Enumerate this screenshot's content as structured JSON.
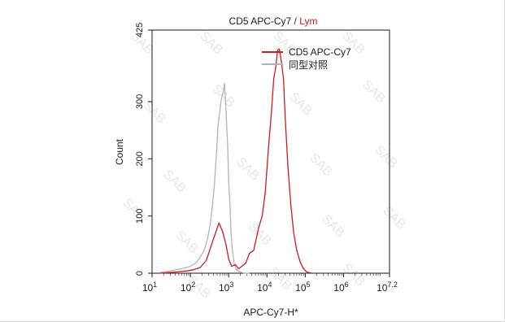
{
  "colors": {
    "sample": "#d0191b",
    "control": "#b3b3b3",
    "title_accent": "#d0191b",
    "text": "#1a1a1a",
    "watermark": "#e6e6e6"
  },
  "watermark_text": "SAB",
  "chart_data": {
    "type": "line",
    "title": {
      "main": "CD5 APC-Cy7",
      "separator": " / ",
      "accent": "Lym"
    },
    "xlabel": "APC-Cy7-H*",
    "ylabel": "Count",
    "x_scale": "log",
    "xlim": [
      10,
      15848932
    ],
    "ylim": [
      0,
      425
    ],
    "x_ticks": [
      {
        "value": 10,
        "base": "10",
        "exp": "1"
      },
      {
        "value": 100,
        "base": "10",
        "exp": "2"
      },
      {
        "value": 1000,
        "base": "10",
        "exp": "3"
      },
      {
        "value": 10000,
        "base": "10",
        "exp": "4"
      },
      {
        "value": 100000,
        "base": "10",
        "exp": "5"
      },
      {
        "value": 1000000,
        "base": "10",
        "exp": "6"
      },
      {
        "value": 15848932,
        "base": "10",
        "exp": "7.2"
      }
    ],
    "y_ticks": [
      {
        "value": 0,
        "label": "0"
      },
      {
        "value": 100,
        "label": "100"
      },
      {
        "value": 200,
        "label": "200"
      },
      {
        "value": 300,
        "label": "300"
      },
      {
        "value": 425,
        "label": "425"
      }
    ],
    "legend_position": "top-right",
    "series": [
      {
        "name": "CD5 APC-Cy7",
        "color_key": "sample",
        "x": [
          16,
          40,
          80,
          120,
          180,
          260,
          350,
          450,
          560,
          700,
          850,
          1000,
          1200,
          1500,
          1800,
          2200,
          2800,
          3500,
          4500,
          6000,
          7500,
          9000,
          11000,
          13000,
          15000,
          17000,
          19000,
          21000,
          24000,
          27000,
          30000,
          35000,
          42000,
          50000,
          60000,
          75000,
          90000,
          110000,
          150000
        ],
        "y": [
          0,
          2,
          4,
          6,
          10,
          22,
          48,
          70,
          88,
          72,
          50,
          25,
          12,
          15,
          8,
          12,
          18,
          35,
          40,
          78,
          100,
          140,
          220,
          280,
          340,
          360,
          390,
          392,
          368,
          340,
          270,
          190,
          120,
          70,
          40,
          18,
          8,
          2,
          0
        ]
      },
      {
        "name": "同型对照",
        "color_key": "control",
        "x": [
          16,
          30,
          60,
          100,
          140,
          180,
          230,
          280,
          330,
          380,
          430,
          480,
          530,
          580,
          630,
          680,
          730,
          780,
          830,
          900,
          950,
          1000,
          1080,
          1150,
          1250,
          1400,
          1600,
          1900,
          2300,
          2800,
          3500
        ],
        "y": [
          1,
          4,
          8,
          12,
          18,
          28,
          40,
          60,
          85,
          120,
          160,
          210,
          260,
          280,
          300,
          310,
          320,
          332,
          300,
          250,
          220,
          160,
          120,
          70,
          40,
          15,
          6,
          3,
          1,
          0,
          0
        ]
      }
    ]
  }
}
